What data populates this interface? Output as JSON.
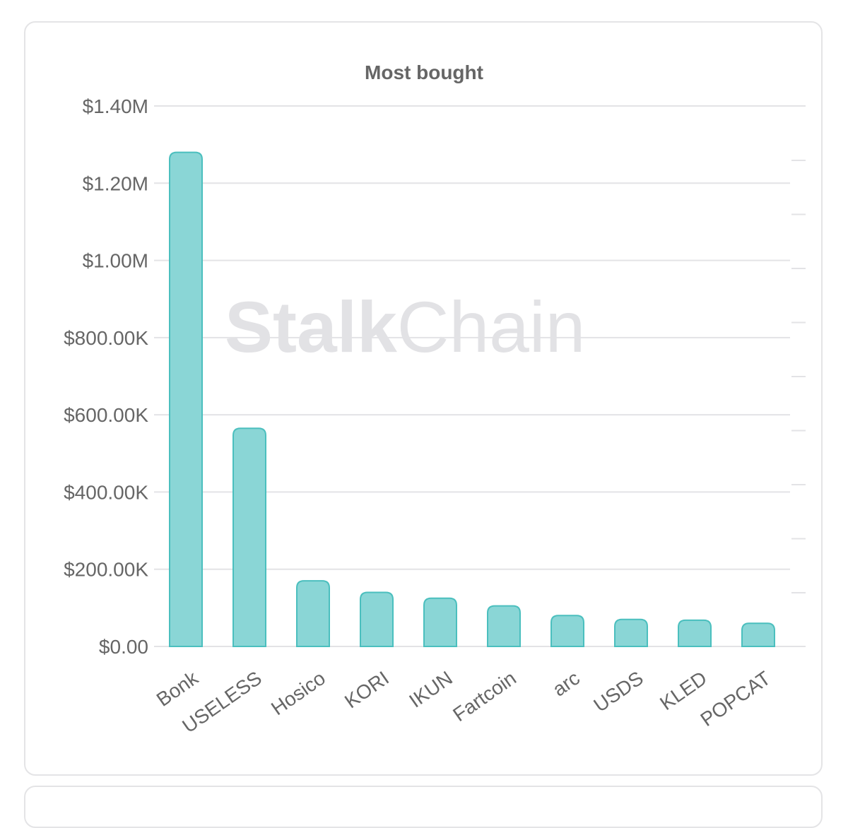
{
  "chart_data": {
    "type": "bar",
    "title": "Most bought",
    "watermark": {
      "bold": "Stalk",
      "light": "Chain"
    },
    "categories": [
      "Bonk",
      "USELESS",
      "Hosico",
      "KORI",
      "IKUN",
      "Fartcoin",
      "arc",
      "USDS",
      "KLED",
      "POPCAT"
    ],
    "values": [
      1280000,
      565000,
      170000,
      140000,
      125000,
      105000,
      80000,
      70000,
      68000,
      60000
    ],
    "ylim": [
      0,
      1400000
    ],
    "yticks": [
      0,
      200000,
      400000,
      600000,
      800000,
      1000000,
      1200000,
      1400000
    ],
    "ytick_labels": [
      "$0.00",
      "$200.00K",
      "$400.00K",
      "$600.00K",
      "$800.00K",
      "$1.00M",
      "$1.20M",
      "$1.40M"
    ],
    "xlabel": "",
    "ylabel": "",
    "grid": true,
    "colors": {
      "bar_fill": "#8ad6d6",
      "bar_stroke": "#4bbfbe",
      "grid": "#e3e3e6",
      "tick_text": "#666666",
      "title_text": "#666666",
      "watermark": "#e2e2e5"
    }
  }
}
